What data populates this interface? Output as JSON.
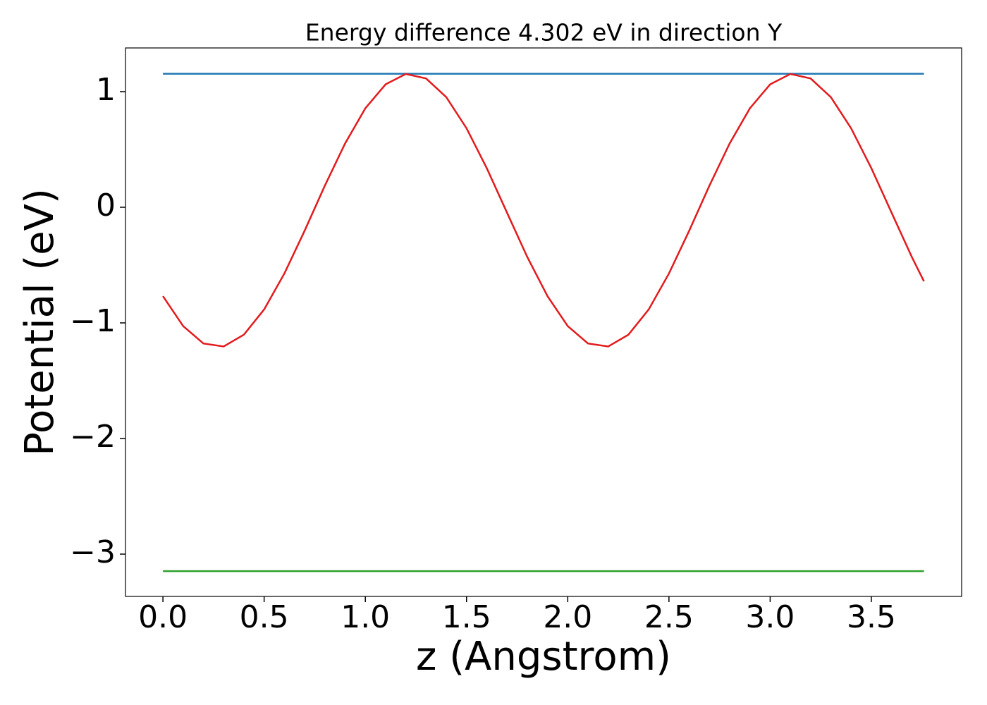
{
  "chart_data": {
    "type": "line",
    "title": "Energy difference 4.302 eV in direction Y",
    "x_label": "z (Angstrom)",
    "y_label": "Potential (eV)",
    "xlim": [
      -0.185,
      3.946
    ],
    "ylim": [
      -3.366,
      1.378
    ],
    "xticks": [
      {
        "value": 0,
        "label": "0.0"
      },
      {
        "value": 0.5,
        "label": "0.5"
      },
      {
        "value": 1,
        "label": "1.0"
      },
      {
        "value": 1.5,
        "label": "1.5"
      },
      {
        "value": 2,
        "label": "2.0"
      },
      {
        "value": 2.5,
        "label": "2.5"
      },
      {
        "value": 3,
        "label": "3.0"
      },
      {
        "value": 3.5,
        "label": "3.5"
      }
    ],
    "yticks": [
      {
        "value": -3,
        "label": "−3"
      },
      {
        "value": -2,
        "label": "−2"
      },
      {
        "value": -1,
        "label": "−1"
      },
      0,
      1
    ],
    "grid": false,
    "series": [
      {
        "color": "#1f77b4",
        "x": [
          0,
          3.76
        ],
        "values": [
          1.155,
          1.155
        ]
      },
      {
        "color": "#2ca02c",
        "x": [
          0,
          3.76
        ],
        "values": [
          -3.147,
          -3.147
        ]
      },
      {
        "color": "#e31a1c",
        "x": [
          0,
          0.1,
          0.2,
          0.3,
          0.4,
          0.5,
          0.6,
          0.7,
          0.8,
          0.9,
          1.0,
          1.1,
          1.2,
          1.3,
          1.4,
          1.5,
          1.6,
          1.7,
          1.8,
          1.9,
          2.0,
          2.1,
          2.2,
          2.3,
          2.4,
          2.5,
          2.6,
          2.7,
          2.8,
          2.9,
          3.0,
          3.1,
          3.2,
          3.3,
          3.4,
          3.5,
          3.6,
          3.7,
          3.76
        ],
        "values": [
          -0.769,
          -1.028,
          -1.178,
          -1.204,
          -1.102,
          -0.884,
          -0.573,
          -0.203,
          0.187,
          0.552,
          0.856,
          1.063,
          1.153,
          1.114,
          0.952,
          0.683,
          0.338,
          -0.047,
          -0.43,
          -0.769,
          -1.028,
          -1.178,
          -1.204,
          -1.102,
          -0.884,
          -0.573,
          -0.203,
          0.187,
          0.552,
          0.856,
          1.063,
          1.153,
          1.114,
          0.952,
          0.683,
          0.338,
          -0.047,
          -0.43,
          -0.641
        ]
      }
    ]
  }
}
